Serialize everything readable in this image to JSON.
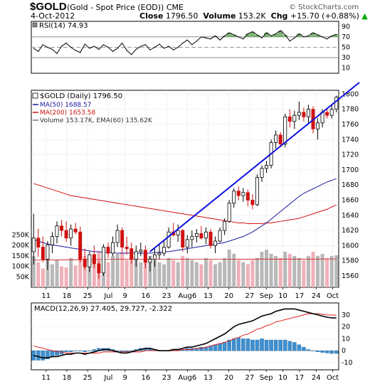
{
  "header": {
    "symbol": "$GOLD",
    "name": "(Gold - Spot Price (EOD)) CME",
    "watermark": "© StockCharts.com",
    "date": "4-Oct-2012",
    "close_label": "Close",
    "close_value": "1796.50",
    "volume_label": "Volume",
    "volume_value": "153.2K",
    "chg_label": "Chg",
    "chg_value": "+15.70 (+0.88%)",
    "chg_arrow": "▲"
  },
  "colors": {
    "candle": "#000000",
    "ma50": "#1a1aa0",
    "ma200": "#d01010",
    "trendline": "#1010e0",
    "volume_up": "#b8b8b8",
    "volume_down": "#f0b0b8",
    "macd_line": "#000000",
    "signal_line": "#e02020",
    "histogram": "#3d8fd0",
    "rsi_fill": "#6aa860"
  },
  "chart_data": [
    {
      "id": "rsi",
      "type": "line",
      "title": "RSI(14) 74.93",
      "ylim": [
        0,
        100
      ],
      "y_ticks": [
        10,
        30,
        50,
        70,
        90
      ],
      "reference_lines": [
        30,
        70
      ],
      "values": [
        48,
        42,
        55,
        50,
        46,
        38,
        52,
        58,
        50,
        44,
        40,
        56,
        48,
        52,
        46,
        55,
        50,
        42,
        48,
        58,
        44,
        36,
        46,
        52,
        55,
        45,
        50,
        56,
        48,
        52,
        45,
        50,
        58,
        64,
        55,
        62,
        70,
        68,
        66,
        72,
        64,
        72,
        78,
        74,
        70,
        66,
        76,
        80,
        74,
        68,
        78,
        72,
        76,
        82,
        74,
        62,
        68,
        76,
        70,
        72,
        78,
        74,
        70,
        66,
        72,
        75
      ]
    },
    {
      "id": "price",
      "type": "candlestick",
      "title": "$GOLD (Daily) 1796.50",
      "ylim": [
        1545,
        1805
      ],
      "y_ticks": [
        1560,
        1580,
        1600,
        1620,
        1640,
        1660,
        1680,
        1700,
        1720,
        1740,
        1760,
        1780,
        1800
      ],
      "x_ticks": [
        "11",
        "18",
        "25",
        "Jul",
        "9",
        "16",
        "23",
        "Aug6",
        "13",
        "20",
        "27",
        "Sep",
        "10",
        "17",
        "24",
        "Oct"
      ],
      "legend": [
        "MA(50) 1688.57",
        "MA(200) 1653.58",
        "Volume 153.17K, EMA(60) 135.62K"
      ],
      "ohlc": [
        [
          1592,
          1642,
          1575,
          1610
        ],
        [
          1610,
          1622,
          1585,
          1598
        ],
        [
          1598,
          1612,
          1578,
          1582
        ],
        [
          1582,
          1606,
          1568,
          1601
        ],
        [
          1601,
          1618,
          1590,
          1612
        ],
        [
          1612,
          1632,
          1603,
          1626
        ],
        [
          1626,
          1634,
          1612,
          1620
        ],
        [
          1620,
          1632,
          1605,
          1610
        ],
        [
          1610,
          1628,
          1600,
          1622
        ],
        [
          1622,
          1630,
          1615,
          1618
        ],
        [
          1618,
          1625,
          1578,
          1582
        ],
        [
          1582,
          1596,
          1568,
          1572
        ],
        [
          1572,
          1592,
          1565,
          1588
        ],
        [
          1588,
          1600,
          1570,
          1576
        ],
        [
          1576,
          1580,
          1556,
          1564
        ],
        [
          1564,
          1602,
          1560,
          1598
        ],
        [
          1598,
          1604,
          1584,
          1590
        ],
        [
          1590,
          1612,
          1586,
          1604
        ],
        [
          1604,
          1628,
          1598,
          1620
        ],
        [
          1620,
          1624,
          1592,
          1598
        ],
        [
          1598,
          1612,
          1588,
          1596
        ],
        [
          1596,
          1604,
          1576,
          1582
        ],
        [
          1582,
          1600,
          1572,
          1592
        ],
        [
          1592,
          1604,
          1586,
          1594
        ],
        [
          1594,
          1600,
          1570,
          1578
        ],
        [
          1578,
          1586,
          1566,
          1582
        ],
        [
          1582,
          1596,
          1572,
          1588
        ],
        [
          1588,
          1602,
          1582,
          1590
        ],
        [
          1590,
          1606,
          1586,
          1598
        ],
        [
          1598,
          1624,
          1596,
          1618
        ],
        [
          1618,
          1630,
          1612,
          1614
        ],
        [
          1614,
          1628,
          1605,
          1620
        ],
        [
          1620,
          1622,
          1592,
          1598
        ],
        [
          1598,
          1614,
          1590,
          1608
        ],
        [
          1608,
          1620,
          1598,
          1612
        ],
        [
          1612,
          1622,
          1604,
          1616
        ],
        [
          1616,
          1626,
          1608,
          1610
        ],
        [
          1610,
          1624,
          1602,
          1618
        ],
        [
          1618,
          1622,
          1596,
          1600
        ],
        [
          1600,
          1612,
          1590,
          1606
        ],
        [
          1606,
          1624,
          1604,
          1620
        ],
        [
          1620,
          1636,
          1614,
          1632
        ],
        [
          1632,
          1660,
          1630,
          1656
        ],
        [
          1656,
          1676,
          1650,
          1672
        ],
        [
          1672,
          1678,
          1660,
          1666
        ],
        [
          1666,
          1676,
          1658,
          1670
        ],
        [
          1670,
          1674,
          1652,
          1660
        ],
        [
          1660,
          1668,
          1648,
          1654
        ],
        [
          1654,
          1694,
          1652,
          1690
        ],
        [
          1690,
          1706,
          1684,
          1702
        ],
        [
          1702,
          1712,
          1696,
          1706
        ],
        [
          1706,
          1740,
          1702,
          1736
        ],
        [
          1736,
          1752,
          1728,
          1746
        ],
        [
          1746,
          1750,
          1730,
          1734
        ],
        [
          1734,
          1774,
          1730,
          1770
        ],
        [
          1770,
          1780,
          1756,
          1764
        ],
        [
          1764,
          1778,
          1754,
          1772
        ],
        [
          1772,
          1790,
          1766,
          1776
        ],
        [
          1776,
          1782,
          1764,
          1770
        ],
        [
          1770,
          1786,
          1762,
          1780
        ],
        [
          1780,
          1784,
          1748,
          1754
        ],
        [
          1754,
          1768,
          1740,
          1762
        ],
        [
          1762,
          1780,
          1756,
          1776
        ],
        [
          1776,
          1782,
          1768,
          1772
        ],
        [
          1772,
          1786,
          1768,
          1780
        ],
        [
          1780,
          1798,
          1776,
          1796
        ]
      ],
      "ma50": [
        1608,
        1606,
        1604,
        1602,
        1601,
        1600,
        1599,
        1598,
        1597,
        1596,
        1595,
        1594,
        1593,
        1592,
        1592,
        1591,
        1591,
        1591,
        1590,
        1590,
        1590,
        1590,
        1590,
        1590,
        1590,
        1590,
        1591,
        1591,
        1592,
        1592,
        1593,
        1594,
        1595,
        1596,
        1597,
        1598,
        1599,
        1600,
        1601,
        1602,
        1603,
        1604,
        1606,
        1608,
        1610,
        1612,
        1615,
        1618,
        1622,
        1626,
        1630,
        1635,
        1640,
        1645,
        1650,
        1655,
        1660,
        1665,
        1669,
        1672,
        1675,
        1678,
        1681,
        1684,
        1686,
        1688.57
      ],
      "ma200": [
        1682,
        1680,
        1678,
        1676,
        1674,
        1672,
        1670,
        1668,
        1666,
        1665,
        1664,
        1663,
        1662,
        1661,
        1660,
        1659,
        1658,
        1657,
        1656,
        1655,
        1654,
        1653,
        1652,
        1651,
        1650,
        1649,
        1648,
        1647,
        1646,
        1645,
        1644,
        1643,
        1642,
        1641,
        1640,
        1639,
        1638,
        1637,
        1636,
        1635,
        1634,
        1633,
        1632,
        1631,
        1630,
        1630,
        1629,
        1629,
        1629,
        1629,
        1630,
        1630,
        1631,
        1632,
        1633,
        1634,
        1635,
        1636,
        1638,
        1640,
        1642,
        1644,
        1646,
        1648,
        1651,
        1653.58
      ],
      "volume_axis": {
        "ylim": [
          0,
          340000
        ],
        "ticks": [
          50000,
          100000,
          150000,
          200000,
          250000
        ],
        "tick_labels": [
          "50K",
          "100K",
          "150K",
          "200K",
          "250K"
        ]
      },
      "volume": [
        150000,
        120000,
        90000,
        160000,
        110000,
        130000,
        100000,
        95000,
        140000,
        105000,
        180000,
        150000,
        130000,
        160000,
        170000,
        140000,
        120000,
        150000,
        160000,
        170000,
        130000,
        150000,
        140000,
        120000,
        160000,
        150000,
        130000,
        120000,
        110000,
        140000,
        130000,
        120000,
        150000,
        140000,
        130000,
        120000,
        110000,
        140000,
        130000,
        110000,
        120000,
        140000,
        180000,
        160000,
        130000,
        120000,
        110000,
        130000,
        140000,
        170000,
        180000,
        160000,
        150000,
        140000,
        170000,
        160000,
        150000,
        140000,
        130000,
        150000,
        170000,
        150000,
        160000,
        140000,
        150000,
        153170
      ],
      "volume_ema": [
        130000,
        130000,
        130500,
        131000,
        131000,
        131500,
        131500,
        132000,
        132000,
        132000,
        132500,
        132500,
        133000,
        133000,
        133000,
        133500,
        133500,
        133500,
        134000,
        134000,
        134000,
        134000,
        134000,
        134000,
        134000,
        134000,
        134000,
        134000,
        134000,
        134000,
        134000,
        134000,
        134000,
        134000,
        134000,
        134000,
        134000,
        134000,
        134000,
        134000,
        134000,
        134000,
        134000,
        134000,
        134500,
        134500,
        134500,
        134500,
        135000,
        135000,
        135000,
        135000,
        135000,
        135000,
        135000,
        135000,
        135000,
        135000,
        135000,
        135000,
        135000,
        135000,
        135500,
        135500,
        135500,
        135620
      ],
      "trendline": [
        [
          28,
          1592
        ],
        [
          69,
          1815
        ]
      ]
    },
    {
      "id": "macd",
      "type": "line",
      "title": "MACD(12,26,9) 27.405, 29.727, -2.322",
      "ylim": [
        -16,
        40
      ],
      "y_ticks": [
        -10,
        0,
        10,
        20,
        30
      ],
      "x_ticks": [
        "11",
        "18",
        "25",
        "Jul",
        "9",
        "16",
        "23",
        "Aug6",
        "13",
        "20",
        "27",
        "Sep",
        "10",
        "17",
        "24",
        "Oct"
      ],
      "macd": [
        -4,
        -5,
        -6,
        -6,
        -5,
        -5,
        -4,
        -3,
        -3,
        -2,
        -2,
        -3,
        -2,
        -1,
        0,
        1,
        1,
        0,
        -1,
        -2,
        -2,
        -1,
        0,
        1,
        2,
        2,
        1,
        0,
        0,
        0,
        1,
        1,
        2,
        3,
        3,
        4,
        5,
        6,
        8,
        10,
        12,
        14,
        17,
        20,
        22,
        23,
        24,
        25,
        27,
        29,
        30,
        31,
        33,
        34,
        35,
        35,
        35,
        34,
        33,
        32,
        31,
        30,
        29,
        28,
        27.5,
        27.405
      ],
      "signal": [
        4,
        3,
        2,
        1,
        0,
        -1,
        -1,
        -2,
        -2,
        -2,
        -2,
        -2,
        -2,
        -2,
        -2,
        -1,
        -1,
        -1,
        -1,
        -1,
        -1,
        -1,
        -1,
        -1,
        0,
        0,
        0,
        0,
        0,
        0,
        0,
        0,
        1,
        1,
        1,
        2,
        2,
        3,
        4,
        5,
        6,
        7,
        8,
        10,
        11,
        13,
        14,
        16,
        18,
        19,
        21,
        22,
        24,
        25,
        26,
        27,
        28,
        29,
        30,
        31,
        31,
        31,
        30.5,
        30,
        29.9,
        29.727
      ],
      "histogram": [
        -8,
        -8,
        -8,
        -7,
        -5,
        -4,
        -3,
        -1,
        -1,
        0,
        0,
        -1,
        0,
        1,
        2,
        2,
        2,
        1,
        0,
        -1,
        -1,
        0,
        1,
        2,
        2,
        2,
        1,
        0,
        0,
        0,
        1,
        1,
        1,
        2,
        2,
        2,
        3,
        3,
        4,
        5,
        6,
        7,
        9,
        10,
        11,
        10,
        10,
        9,
        9,
        10,
        9,
        9,
        9,
        9,
        9,
        8,
        7,
        5,
        3,
        1,
        0,
        -1,
        -1.5,
        -2,
        -2.4,
        -2.322
      ]
    }
  ]
}
